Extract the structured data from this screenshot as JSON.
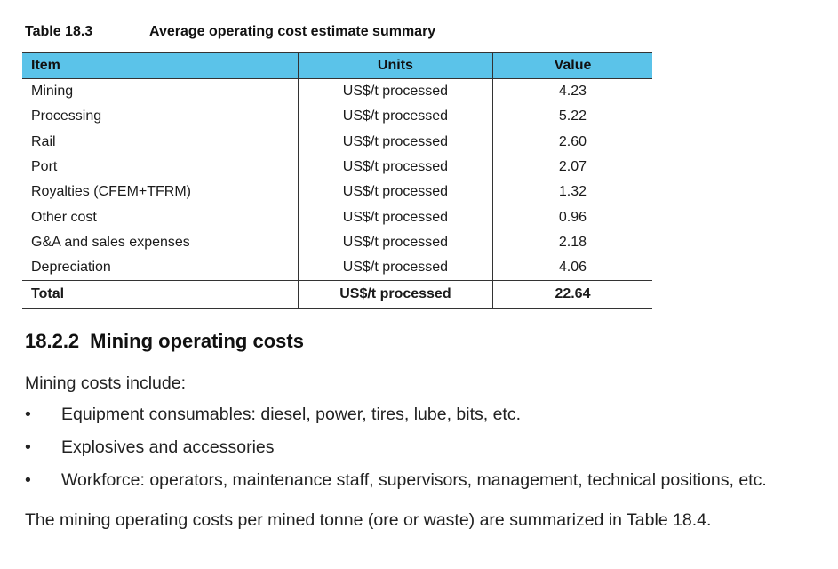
{
  "table": {
    "number": "Table 18.3",
    "title": "Average operating cost estimate summary",
    "headers": [
      "Item",
      "Units",
      "Value"
    ],
    "rows": [
      [
        "Mining",
        "US$/t processed",
        "4.23"
      ],
      [
        "Processing",
        "US$/t processed",
        "5.22"
      ],
      [
        "Rail",
        "US$/t processed",
        "2.60"
      ],
      [
        "Port",
        "US$/t processed",
        "2.07"
      ],
      [
        "Royalties (CFEM+TFRM)",
        "US$/t processed",
        "1.32"
      ],
      [
        "Other cost",
        "US$/t processed",
        "0.96"
      ],
      [
        "G&A and sales expenses",
        "US$/t processed",
        "2.18"
      ],
      [
        "Depreciation",
        "US$/t processed",
        "4.06"
      ]
    ],
    "total": [
      "Total",
      "US$/t processed",
      "22.64"
    ]
  },
  "section": {
    "number": "18.2.2",
    "title": "Mining operating costs"
  },
  "intro": "Mining costs include:",
  "bullet_symbol": "•",
  "bullets": [
    "Equipment consumables: diesel, power, tires, lube, bits, etc.",
    "Explosives and accessories",
    "Workforce: operators, maintenance staff, supervisors, management, technical positions, etc."
  ],
  "closing": "The mining operating costs per mined tonne (ore or waste) are summarized in Table 18.4."
}
